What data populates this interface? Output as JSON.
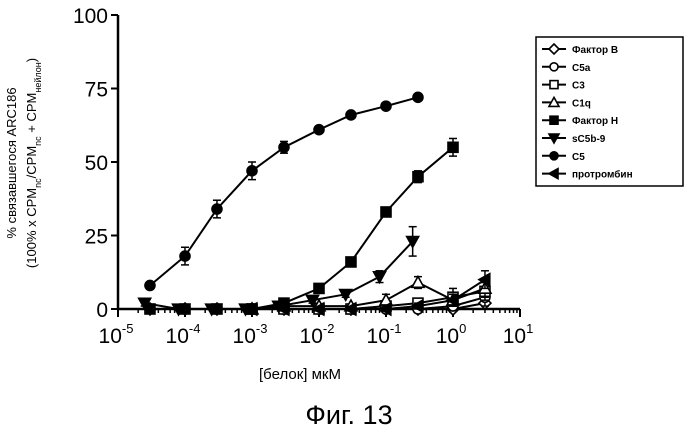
{
  "chart_data": {
    "type": "line",
    "x_scale": "log",
    "xlim": [
      1e-05,
      10
    ],
    "ylim": [
      0,
      100
    ],
    "x_ticks": [
      {
        "base": "10",
        "exp": "-5"
      },
      {
        "base": "10",
        "exp": "-4"
      },
      {
        "base": "10",
        "exp": "-3"
      },
      {
        "base": "10",
        "exp": "-2"
      },
      {
        "base": "10",
        "exp": "-1"
      },
      {
        "base": "10",
        "exp": "0"
      },
      {
        "base": "10",
        "exp": "1"
      }
    ],
    "y_ticks": [
      "0",
      "25",
      "50",
      "75",
      "100"
    ],
    "xlabel": "[белок] мкМ",
    "ylabel_line1": "% связавшегося ARC186",
    "ylabel_line2": {
      "p1": "(100% x CPM",
      "s1": "nc",
      "p2": "/CPM",
      "s2": "nc",
      "p3": " + CPM",
      "s3": "нейлон",
      "p4": ")"
    },
    "grid": false,
    "legend_position": "right",
    "series": [
      {
        "name": "Фактор B",
        "marker": "diamond-open",
        "x": [
          3e-05,
          0.0001,
          0.0003,
          0.001,
          0.003,
          0.01,
          0.03,
          0.1,
          0.3,
          1,
          3
        ],
        "y": [
          0,
          0,
          0,
          0,
          0,
          0,
          0,
          0,
          0,
          0,
          2
        ],
        "err": [
          0,
          0,
          0,
          0,
          0,
          0,
          0,
          0,
          0,
          0,
          2
        ]
      },
      {
        "name": "C5a",
        "marker": "circle-open",
        "x": [
          0.001,
          0.003,
          0.01,
          0.03,
          0.1,
          0.3,
          1,
          3
        ],
        "y": [
          0,
          0,
          0,
          0,
          0,
          0,
          1,
          4
        ],
        "err": [
          0,
          0,
          0,
          0,
          0,
          0,
          1,
          3
        ]
      },
      {
        "name": "C3",
        "marker": "square-open",
        "x": [
          0.001,
          0.003,
          0.01,
          0.03,
          0.1,
          0.3,
          1,
          3
        ],
        "y": [
          0,
          0,
          0,
          0,
          1,
          2,
          4,
          6
        ],
        "err": [
          0,
          0,
          0,
          0,
          1,
          1,
          3,
          3
        ]
      },
      {
        "name": "C1q",
        "marker": "triangle-up-open",
        "x": [
          0.001,
          0.003,
          0.01,
          0.03,
          0.1,
          0.3,
          1,
          3
        ],
        "y": [
          0,
          1,
          1,
          1,
          3,
          9,
          3,
          7
        ],
        "err": [
          0,
          0,
          0,
          0,
          2,
          2,
          2,
          3
        ]
      },
      {
        "name": "Фактор H",
        "marker": "square-filled",
        "x": [
          3e-05,
          0.0001,
          0.0003,
          0.001,
          0.003,
          0.01,
          0.03,
          0.1,
          0.3,
          1
        ],
        "y": [
          0,
          0,
          0,
          0,
          2,
          7,
          16,
          33,
          45,
          55
        ],
        "err": [
          0,
          0,
          0,
          0,
          1,
          1,
          1,
          1,
          2,
          3
        ]
      },
      {
        "name": "sC5b-9",
        "marker": "triangle-down-filled",
        "x": [
          2.5e-05,
          8e-05,
          0.00025,
          0.0008,
          0.0025,
          0.008,
          0.025,
          0.08,
          0.25
        ],
        "y": [
          2,
          0,
          0,
          0,
          1,
          3,
          5,
          11,
          23
        ],
        "err": [
          1,
          0,
          0,
          0,
          1,
          1,
          1,
          2,
          5
        ]
      },
      {
        "name": "C5",
        "marker": "circle-filled",
        "x": [
          3e-05,
          0.0001,
          0.0003,
          0.001,
          0.003,
          0.01,
          0.03,
          0.1,
          0.3
        ],
        "y": [
          8,
          18,
          34,
          47,
          55,
          61,
          66,
          69,
          72
        ],
        "err": [
          1,
          3,
          3,
          3,
          2,
          1,
          1,
          1,
          1
        ]
      },
      {
        "name": "протромбин",
        "marker": "triangle-left-filled",
        "x": [
          0.001,
          0.003,
          0.01,
          0.03,
          0.1,
          0.3,
          1,
          3
        ],
        "y": [
          0,
          0,
          0,
          0,
          0,
          1,
          3,
          10
        ],
        "err": [
          0,
          0,
          0,
          0,
          0,
          1,
          2,
          3
        ]
      }
    ]
  },
  "caption": "Фиг. 13"
}
